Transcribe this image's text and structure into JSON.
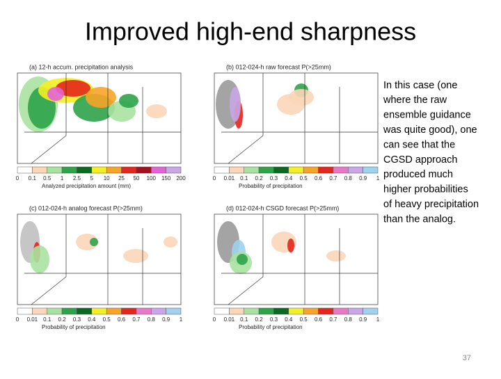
{
  "title": "Improved high-end sharpness",
  "panels": [
    {
      "title": "(a) 12-h accum. precipitation analysis",
      "ticks": [
        "0",
        "0.1",
        "0.5",
        "1",
        "2.5",
        "5",
        "10",
        "25",
        "50",
        "100",
        "150",
        "200"
      ],
      "caption": "Analyzed precipitation amount (mm)"
    },
    {
      "title": "(b) 012-024-h raw forecast P(>25mm)",
      "ticks": [
        "0",
        "0.01",
        "0.1",
        "0.2",
        "0.3",
        "0.4",
        "0.5",
        "0.6",
        "0.7",
        "0.8",
        "0.9",
        "1"
      ],
      "caption": "Probability of precipitation"
    },
    {
      "title": "(c) 012-024-h analog forecast P(>25mm)",
      "ticks": [
        "0",
        "0.01",
        "0.1",
        "0.2",
        "0.3",
        "0.4",
        "0.5",
        "0.6",
        "0.7",
        "0.8",
        "0.9",
        "1"
      ],
      "caption": "Probability of precipitation"
    },
    {
      "title": "(d) 012-024-h CSGD forecast P(>25mm)",
      "ticks": [
        "0",
        "0.01",
        "0.1",
        "0.2",
        "0.3",
        "0.4",
        "0.5",
        "0.6",
        "0.7",
        "0.8",
        "0.9",
        "1"
      ],
      "caption": "Probability of precipitation"
    }
  ],
  "body": [
    "In this case (one",
    "where the raw",
    "ensemble guidance",
    "was quite good), one",
    "can see that the",
    "CGSD approach",
    "produced much",
    "higher probabilities",
    "of heavy precipitation",
    "than the analog."
  ],
  "page_number": "37"
}
